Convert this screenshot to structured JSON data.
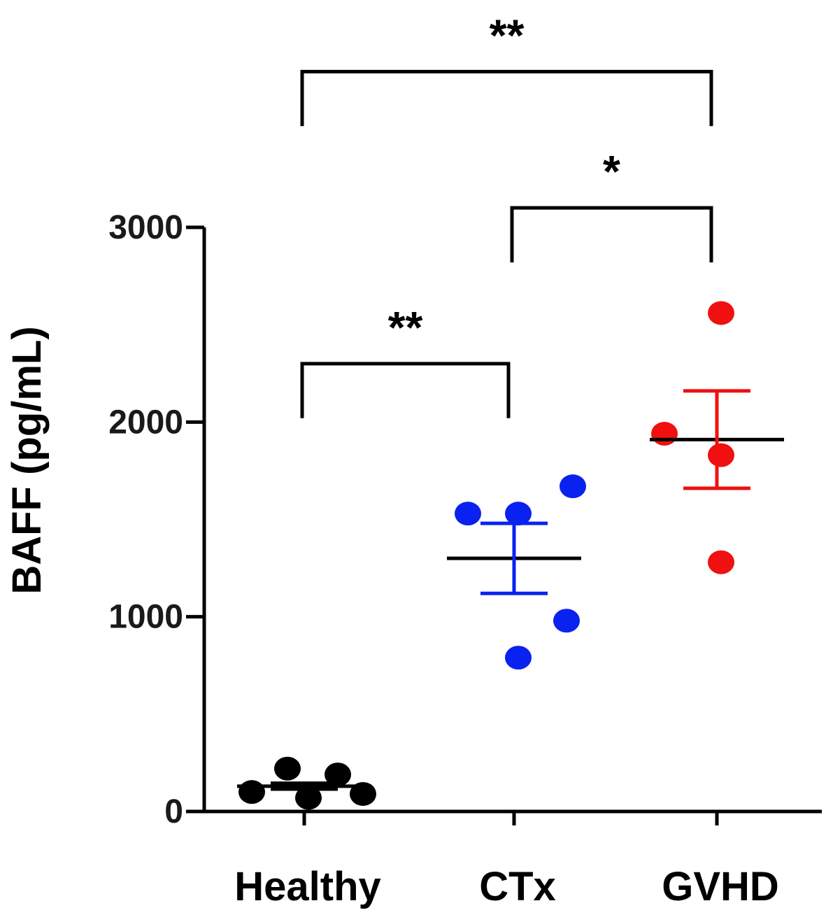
{
  "chart_data": {
    "type": "scatter",
    "title": "",
    "xlabel": "",
    "ylabel": "BAFF (pg/mL)",
    "ylim": [
      0,
      3000
    ],
    "yticks": [
      0,
      1000,
      2000,
      3000
    ],
    "grid": false,
    "categories": [
      "Healthy",
      "CTx",
      "GVHD"
    ],
    "groups": [
      {
        "category": "Healthy",
        "color": "#000000",
        "points": [
          {
            "offset": -0.25,
            "value": 100
          },
          {
            "offset": -0.08,
            "value": 220
          },
          {
            "offset": 0.02,
            "value": 70
          },
          {
            "offset": 0.16,
            "value": 190
          },
          {
            "offset": 0.28,
            "value": 90
          }
        ],
        "mean": 130,
        "sem_low": 115,
        "sem_high": 145
      },
      {
        "category": "CTx",
        "color": "#0a22f0",
        "points": [
          {
            "offset": -0.22,
            "value": 1530
          },
          {
            "offset": 0.02,
            "value": 1530
          },
          {
            "offset": 0.28,
            "value": 1670
          },
          {
            "offset": 0.02,
            "value": 790
          },
          {
            "offset": 0.25,
            "value": 980
          }
        ],
        "mean": 1300,
        "sem_low": 1120,
        "sem_high": 1480
      },
      {
        "category": "GVHD",
        "color": "#f01010",
        "points": [
          {
            "offset": 0.02,
            "value": 2560
          },
          {
            "offset": -0.25,
            "value": 1940
          },
          {
            "offset": 0.02,
            "value": 1830
          },
          {
            "offset": 0.02,
            "value": 1280
          }
        ],
        "mean": 1910,
        "sem_low": 1660,
        "sem_high": 2160
      }
    ],
    "significance": [
      {
        "from": "Healthy",
        "to": "CTx",
        "label": "**",
        "level": 2300
      },
      {
        "from": "CTx",
        "to": "GVHD",
        "label": "*",
        "level": 3100
      },
      {
        "from": "Healthy",
        "to": "GVHD",
        "label": "**",
        "level": 3800
      }
    ]
  }
}
